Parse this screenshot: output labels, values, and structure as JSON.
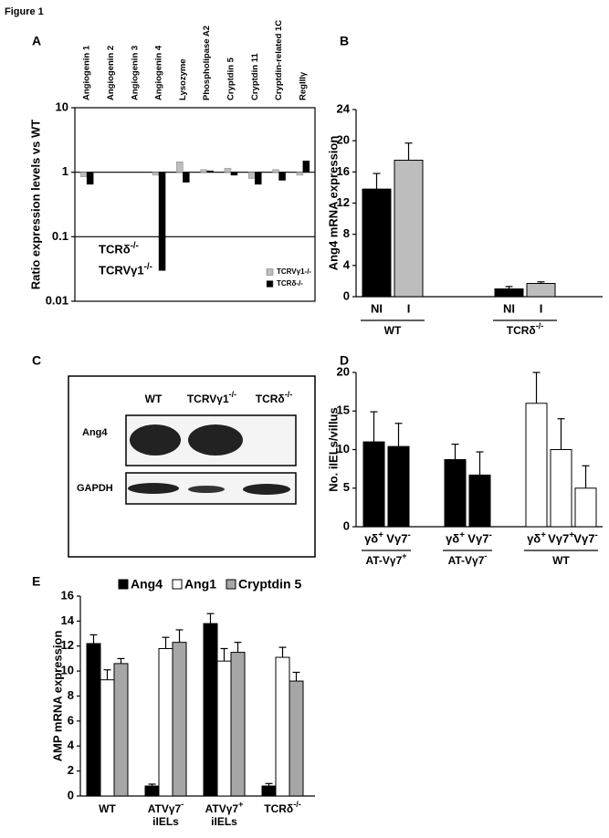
{
  "figure_label": "Figure 1",
  "panel_labels": [
    "A",
    "B",
    "C",
    "D",
    "E"
  ],
  "blot": {
    "lanes": [
      "WT",
      "TCRVγ1-/-",
      "TCRδ-/-"
    ],
    "rows": [
      "Ang4",
      "GAPDH"
    ]
  },
  "chart_data": [
    {
      "type": "bar",
      "log": true,
      "ylabel": "Ratio expression levels vs WT",
      "categories": [
        "Angiogenin 1",
        "Angiogenin 2",
        "Angiogenin 3",
        "Angiogenin 4",
        "Lysozyme",
        "Phospholipase A2",
        "Cryptdin 5",
        "Cryptdin 11",
        "Cryptdin-related 1C",
        "RegIIIγ"
      ],
      "series": [
        {
          "name": "TCRVγ1-/-",
          "color": "#bdbdbd",
          "values": [
            0.85,
            null,
            null,
            0.9,
            1.45,
            1.1,
            1.15,
            0.8,
            1.1,
            0.9
          ]
        },
        {
          "name": "TCRδ-/-",
          "color": "#000000",
          "values": [
            0.65,
            null,
            null,
            0.03,
            0.7,
            1.05,
            0.9,
            0.65,
            0.75,
            1.5
          ]
        }
      ],
      "annotations": [
        "TCRδ-/-",
        "TCRVγ1-/-"
      ],
      "reference_lines": [
        1,
        0.1
      ],
      "ylim": [
        0.01,
        10
      ],
      "yticks": [
        10,
        1,
        0.1,
        0.01
      ]
    },
    {
      "type": "bar",
      "ylabel": "Ang4 mRNA expression",
      "categories": [
        "NI",
        "I",
        "NI",
        "I"
      ],
      "groups": [
        {
          "label": "WT",
          "size": 2
        },
        {
          "label": "TCRδ-/-",
          "size": 2
        }
      ],
      "series": [
        {
          "values": [
            13.8,
            17.5,
            1.0,
            1.7
          ],
          "errors": [
            2.0,
            2.2,
            0.3,
            0.2
          ],
          "colors": [
            "#000000",
            "#bdbdbd",
            "#000000",
            "#bdbdbd"
          ]
        }
      ],
      "ylim": [
        0,
        24
      ],
      "yticks": [
        0,
        4,
        8,
        12,
        16,
        20,
        24
      ]
    },
    {
      "type": "bar",
      "ylabel": "No. iIELs/villus",
      "categories": [
        "γδ+",
        "Vγ7-",
        "γδ+",
        "Vγ7-",
        "γδ+",
        "Vγ7+",
        "Vγ7-"
      ],
      "groups": [
        {
          "label": "AT-Vγ7+",
          "size": 2
        },
        {
          "label": "AT-Vγ7-",
          "size": 2
        },
        {
          "label": "WT",
          "size": 3
        }
      ],
      "series": [
        {
          "values": [
            11,
            10.4,
            8.7,
            6.7,
            16,
            10,
            5
          ],
          "errors": [
            3.9,
            3,
            2,
            3,
            4,
            4,
            2.9
          ],
          "colors": [
            "#000000",
            "#000000",
            "#000000",
            "#000000",
            "#ffffff",
            "#ffffff",
            "#ffffff"
          ]
        }
      ],
      "ylim": [
        0,
        20
      ],
      "yticks": [
        0,
        5,
        10,
        15,
        20
      ]
    },
    {
      "type": "bar",
      "ylabel": "AMP mRNA expression",
      "categories": [
        "WT",
        "ATVγ7-",
        "ATVγ7+",
        "TCRδ-/-"
      ],
      "sublabels": [
        null,
        "iIELs",
        "iIELs",
        null
      ],
      "series": [
        {
          "name": "Ang4",
          "color": "#000000",
          "values": [
            12.2,
            0.8,
            13.8,
            0.8
          ],
          "errors": [
            0.7,
            0.15,
            0.8,
            0.2
          ]
        },
        {
          "name": "Ang1",
          "color": "#ffffff",
          "values": [
            9.3,
            11.8,
            10.8,
            11.1
          ],
          "errors": [
            0.8,
            0.9,
            1.0,
            0.8
          ]
        },
        {
          "name": "Cryptdin 5",
          "color": "#a6a6a6",
          "values": [
            10.6,
            12.3,
            11.5,
            9.2
          ],
          "errors": [
            0.4,
            1.0,
            0.8,
            0.7
          ]
        }
      ],
      "ylim": [
        0,
        16
      ],
      "yticks": [
        0,
        2,
        4,
        6,
        8,
        10,
        12,
        14,
        16
      ]
    }
  ]
}
